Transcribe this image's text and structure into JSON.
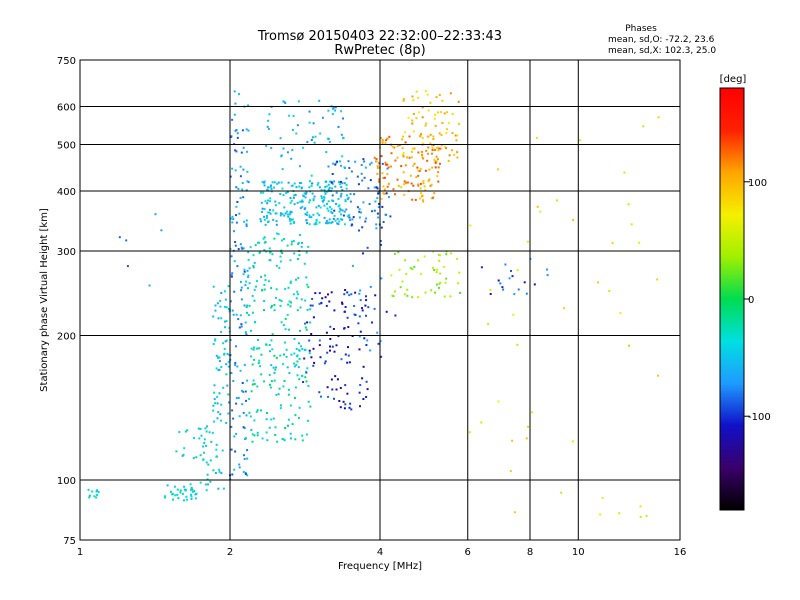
{
  "chart_data": {
    "type": "scatter",
    "title": "Tromsø 20150403 22:32:00–22:33:43",
    "subtitle": "RwPretec (8p)",
    "xlabel": "Frequency [MHz]",
    "ylabel": "Stationary phase Virtual Height [km]",
    "x_scale": "log",
    "y_scale": "log",
    "xlim": [
      1,
      16
    ],
    "ylim": [
      75,
      750
    ],
    "x_ticks": [
      1,
      2,
      4,
      6,
      8,
      10,
      16
    ],
    "x_tick_labels": [
      "1",
      "2",
      "4",
      "6",
      "8",
      "10",
      "16"
    ],
    "y_ticks": [
      75,
      100,
      200,
      300,
      400,
      500,
      600,
      750
    ],
    "y_tick_labels": [
      "75",
      "100",
      "200",
      "300",
      "400",
      "500",
      "600",
      "750"
    ],
    "grid": true,
    "legend": {
      "title": "Phases",
      "line1": "mean, sd,O: -72.2, 23.6",
      "line2": "mean, sd,X: 102.3, 25.0"
    },
    "colorbar": {
      "label": "[deg]",
      "range": [
        -180,
        180
      ],
      "ticks": [
        100,
        0,
        -100
      ],
      "tick_labels": [
        "100",
        "0",
        "-100"
      ],
      "colors": [
        "#000000",
        "#3a006a",
        "#1010c8",
        "#1e9bff",
        "#00e0e0",
        "#00dc50",
        "#a0f000",
        "#f5f000",
        "#ffa500",
        "#ff2000",
        "#ff0000"
      ]
    },
    "series": [
      {
        "clusters": [
          {
            "f": [
              1.03,
              1.09
            ],
            "h": [
              91,
              96
            ],
            "n": 10,
            "phase": -35
          },
          {
            "f": [
              1.48,
              1.72
            ],
            "h": [
              90,
              98
            ],
            "n": 35,
            "phase": -35
          },
          {
            "f": [
              1.72,
              1.95
            ],
            "h": [
              95,
              130
            ],
            "n": 30,
            "phase": -40
          },
          {
            "f": [
              1.55,
              1.85
            ],
            "h": [
              110,
              130
            ],
            "n": 20,
            "phase": -35
          },
          {
            "f": [
              1.85,
              2.0
            ],
            "h": [
              130,
              260
            ],
            "n": 70,
            "phase": -45
          },
          {
            "f": [
              2.0,
              2.18
            ],
            "h": [
              100,
              650
            ],
            "n": 140,
            "phase": -70
          },
          {
            "f": [
              2.15,
              2.9
            ],
            "h": [
              120,
              330
            ],
            "n": 260,
            "phase": -30
          },
          {
            "f": [
              2.3,
              3.5
            ],
            "h": [
              340,
              420
            ],
            "n": 230,
            "phase": -50
          },
          {
            "f": [
              2.3,
              3.4
            ],
            "h": [
              430,
              620
            ],
            "n": 60,
            "phase": -55
          },
          {
            "f": [
              2.8,
              3.8
            ],
            "h": [
              140,
              250
            ],
            "n": 110,
            "phase": -105
          },
          {
            "f": [
              3.2,
              4.2
            ],
            "h": [
              330,
              470
            ],
            "n": 80,
            "phase": -80
          },
          {
            "f": [
              3.5,
              4.4
            ],
            "h": [
              180,
              340
            ],
            "n": 25,
            "phase": -85
          },
          {
            "f": [
              3.9,
              5.3
            ],
            "h": [
              380,
              520
            ],
            "n": 130,
            "phase": 110
          },
          {
            "f": [
              4.4,
              5.8
            ],
            "h": [
              460,
              650
            ],
            "n": 80,
            "phase": 95
          },
          {
            "f": [
              4.2,
              5.8
            ],
            "h": [
              240,
              300
            ],
            "n": 50,
            "phase": 40
          },
          {
            "f": [
              6.4,
              8.8
            ],
            "h": [
              240,
              300
            ],
            "n": 18,
            "phase": -90
          },
          {
            "f": [
              6.0,
              14.5
            ],
            "h": [
              80,
              650
            ],
            "n": 45,
            "phase": 70
          },
          {
            "f": [
              1.2,
              1.5
            ],
            "h": [
              230,
              380
            ],
            "n": 6,
            "phase": -80
          }
        ]
      }
    ]
  }
}
